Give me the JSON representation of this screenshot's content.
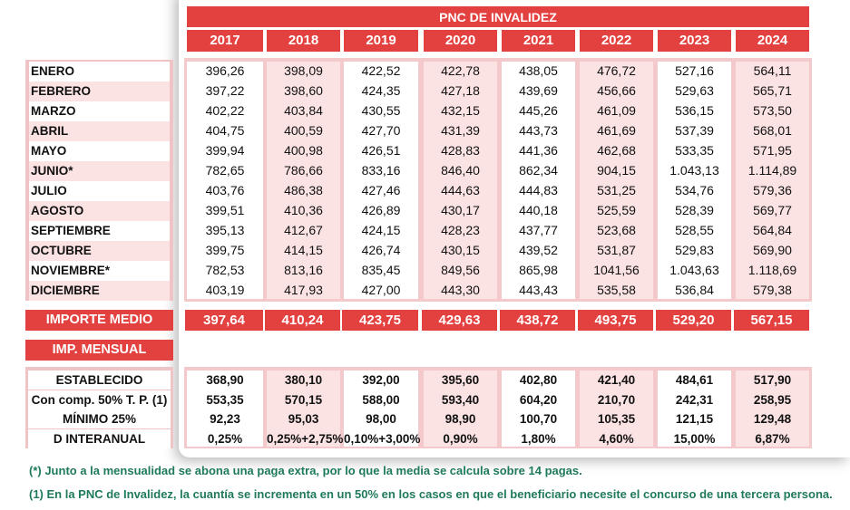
{
  "title": "PNC DE INVALIDEZ",
  "years": [
    "2017",
    "2018",
    "2019",
    "2020",
    "2021",
    "2022",
    "2023",
    "2024"
  ],
  "months": [
    "ENERO",
    "FEBRERO",
    "MARZO",
    "ABRIL",
    "MAYO",
    "JUNIO*",
    "JULIO",
    "AGOSTO",
    "SEPTIEMBRE",
    "OCTUBRE",
    "NOVIEMBRE*",
    "DICIEMBRE"
  ],
  "values": [
    [
      "396,26",
      "398,09",
      "422,52",
      "422,78",
      "438,05",
      "476,72",
      "527,16",
      "564,11"
    ],
    [
      "397,22",
      "398,60",
      "424,35",
      "427,18",
      "439,69",
      "456,66",
      "529,63",
      "565,71"
    ],
    [
      "402,22",
      "403,84",
      "430,55",
      "432,15",
      "445,26",
      "461,09",
      "536,15",
      "573,50"
    ],
    [
      "404,75",
      "400,59",
      "427,70",
      "431,39",
      "443,73",
      "461,69",
      "537,39",
      "568,01"
    ],
    [
      "399,94",
      "400,98",
      "426,51",
      "428,83",
      "441,36",
      "462,68",
      "533,35",
      "571,95"
    ],
    [
      "782,65",
      "786,66",
      "833,16",
      "846,40",
      "862,34",
      "904,15",
      "1.043,13",
      "1.114,89"
    ],
    [
      "403,76",
      "486,38",
      "427,46",
      "444,63",
      "444,83",
      "531,25",
      "534,76",
      "579,36"
    ],
    [
      "399,51",
      "410,36",
      "426,89",
      "430,17",
      "440,18",
      "525,59",
      "528,39",
      "569,77"
    ],
    [
      "395,13",
      "412,67",
      "424,15",
      "428,23",
      "437,77",
      "523,68",
      "528,55",
      "564,84"
    ],
    [
      "399,75",
      "414,15",
      "426,74",
      "430,15",
      "439,52",
      "531,87",
      "529,83",
      "569,90"
    ],
    [
      "782,53",
      "813,16",
      "835,45",
      "849,56",
      "865,98",
      "1041,56",
      "1.043,63",
      "1.118,69"
    ],
    [
      "403,19",
      "417,93",
      "427,00",
      "443,30",
      "443,43",
      "535,58",
      "536,84",
      "579,38"
    ]
  ],
  "importe_medio": {
    "label": "IMPORTE MEDIO",
    "values": [
      "397,64",
      "410,24",
      "423,75",
      "429,63",
      "438,72",
      "493,75",
      "529,20",
      "567,15"
    ]
  },
  "imp_mensual_label": "IMP. MENSUAL",
  "mensual_rows": [
    {
      "label": "ESTABLECIDO",
      "values": [
        "368,90",
        "380,10",
        "392,00",
        "395,60",
        "402,80",
        "421,40",
        "484,61",
        "517,90"
      ]
    },
    {
      "label": "Con comp. 50% T. P. (1)",
      "values": [
        "553,35",
        "570,15",
        "588,00",
        "593,40",
        "604,20",
        "210,70",
        "242,31",
        "258,95"
      ]
    },
    {
      "label": "MÍNIMO 25%",
      "values": [
        "92,23",
        "95,03",
        "98,00",
        "98,90",
        "100,70",
        "105,35",
        "121,15",
        "129,48"
      ]
    },
    {
      "label": "D INTERANUAL",
      "values": [
        "0,25%",
        "0,25%+2,75%",
        "0,10%+3,00%",
        "0,90%",
        "1,80%",
        "4,60%",
        "15,00%",
        "6,87%"
      ]
    }
  ],
  "footnotes": [
    "(*) Junto a la mensualidad se abona una paga extra, por lo que la media se calcula sobre 14 pagas.",
    "(1) En la PNC de Invalidez, la cuantía se incrementa en un 50% en los casos en que el beneficiario necesite el concurso de una tercera persona."
  ],
  "colors": {
    "header_red": "#e3413f",
    "pink": "#fbe3e4",
    "footnote_green": "#1f7a5c"
  }
}
